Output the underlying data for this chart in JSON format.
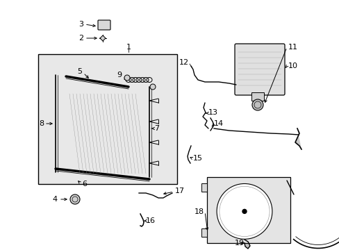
{
  "bg": "#ffffff",
  "fw": 4.89,
  "fh": 3.6,
  "dpi": 100
}
